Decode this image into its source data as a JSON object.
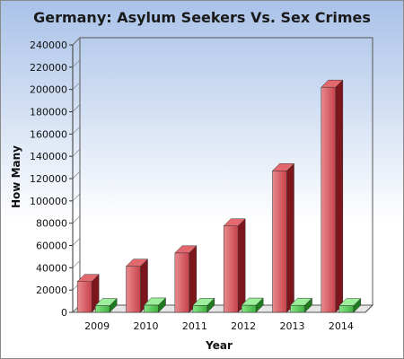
{
  "chart_data": {
    "type": "bar",
    "title": "Germany: Asylum Seekers Vs. Sex Crimes",
    "xlabel": "Year",
    "ylabel": "How Many",
    "categories": [
      "2009",
      "2010",
      "2011",
      "2012",
      "2013",
      "2014"
    ],
    "series": [
      {
        "color": "#c0343c",
        "values": [
          27600,
          41300,
          53300,
          77500,
          127000,
          202000
        ]
      },
      {
        "color": "#3fb23f",
        "values": [
          6000,
          6500,
          6200,
          6400,
          6300,
          6000
        ]
      }
    ],
    "ylim": [
      0,
      240000
    ],
    "yticks": [
      "0",
      "20000",
      "40000",
      "60000",
      "80000",
      "100000",
      "120000",
      "140000",
      "160000",
      "180000",
      "200000",
      "220000",
      "240000"
    ],
    "grid": false,
    "legend": "none",
    "style": "3d"
  }
}
